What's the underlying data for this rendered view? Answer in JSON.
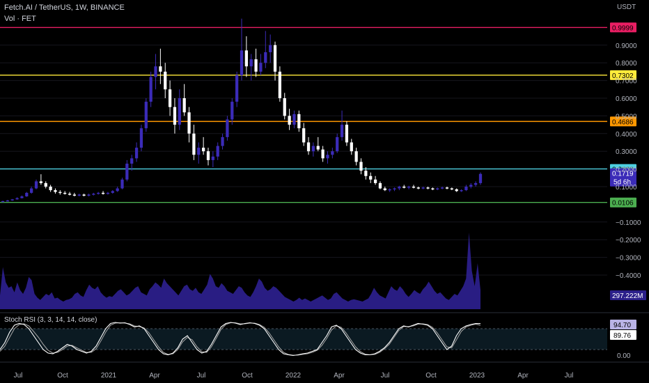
{
  "header": {
    "title": "Fetch.AI / TetherUS, 1W, BINANCE",
    "vol_label": "Vol · FET",
    "currency": "USDT"
  },
  "chart_data": {
    "type": "candlestick",
    "symbol": "Fetch.AI / TetherUS",
    "interval": "1W",
    "exchange": "BINANCE",
    "currency": "USDT",
    "y_ticks": [
      "0.9000",
      "0.8000",
      "0.7000",
      "0.6000",
      "0.5000",
      "0.4000",
      "0.3000",
      "0.2000",
      "0.1000",
      "−0.1000",
      "−0.2000",
      "−0.3000",
      "−0.4000"
    ],
    "y_tick_values": [
      0.9,
      0.8,
      0.7,
      0.6,
      0.5,
      0.4,
      0.3,
      0.2,
      0.1,
      -0.1,
      -0.2,
      -0.3,
      -0.4
    ],
    "x_ticks": [
      "Jul",
      "Oct",
      "2021",
      "Apr",
      "Jul",
      "Oct",
      "2022",
      "Apr",
      "Jul",
      "Oct",
      "2023",
      "Apr",
      "Jul"
    ],
    "levels": [
      {
        "label": "0.9999",
        "value": 0.9999,
        "color": "#e91e63"
      },
      {
        "label": "0.7302",
        "value": 0.7302,
        "color": "#ffeb3b"
      },
      {
        "label": "0.4686",
        "value": 0.4686,
        "color": "#ff9800"
      },
      {
        "label": "0.2000",
        "value": 0.2,
        "color": "#4dd0e1"
      },
      {
        "label": "0.0106",
        "value": 0.0106,
        "color": "#4caf50"
      }
    ],
    "last_price": {
      "label": "0.1719",
      "value": 0.1719,
      "countdown": "5d 6h",
      "color": "#3b2bb8"
    },
    "volume_label": "297.222M",
    "volume_profile": [
      0.18,
      0.55,
      0.35,
      0.28,
      0.3,
      0.22,
      0.35,
      0.25,
      0.2,
      0.28,
      0.42,
      0.38,
      0.2,
      0.15,
      0.12,
      0.16,
      0.2,
      0.18,
      0.22,
      0.14,
      0.15,
      0.12,
      0.1,
      0.12,
      0.13,
      0.15,
      0.2,
      0.22,
      0.18,
      0.16,
      0.25,
      0.32,
      0.28,
      0.26,
      0.3,
      0.22,
      0.18,
      0.15,
      0.17,
      0.16,
      0.2,
      0.24,
      0.26,
      0.22,
      0.18,
      0.2,
      0.24,
      0.28,
      0.3,
      0.22,
      0.2,
      0.18,
      0.26,
      0.3,
      0.35,
      0.32,
      0.28,
      0.4,
      0.34,
      0.3,
      0.26,
      0.22,
      0.18,
      0.24,
      0.3,
      0.32,
      0.26,
      0.24,
      0.28,
      0.22,
      0.2,
      0.26,
      0.32,
      0.46,
      0.4,
      0.3,
      0.28,
      0.34,
      0.3,
      0.24,
      0.22,
      0.2,
      0.25,
      0.3,
      0.28,
      0.22,
      0.18,
      0.16,
      0.22,
      0.3,
      0.4,
      0.36,
      0.28,
      0.24,
      0.26,
      0.3,
      0.28,
      0.24,
      0.2,
      0.16,
      0.14,
      0.12,
      0.1,
      0.12,
      0.15,
      0.12,
      0.14,
      0.12,
      0.1,
      0.12,
      0.14,
      0.16,
      0.18,
      0.15,
      0.12,
      0.14,
      0.2,
      0.22,
      0.18,
      0.14,
      0.12,
      0.1,
      0.12,
      0.13,
      0.12,
      0.11,
      0.1,
      0.12,
      0.14,
      0.2,
      0.28,
      0.22,
      0.18,
      0.16,
      0.14,
      0.22,
      0.3,
      0.26,
      0.24,
      0.3,
      0.26,
      0.2,
      0.16,
      0.2,
      0.25,
      0.22,
      0.2,
      0.26,
      0.3,
      0.36,
      0.3,
      0.24,
      0.2,
      0.22,
      0.18,
      0.14,
      0.12,
      0.16,
      0.2,
      0.18,
      0.24,
      0.3,
      0.4,
      1.0,
      0.5,
      0.3,
      0.6,
      0.25
    ],
    "candles": [
      [
        0.015,
        0.02,
        0.012,
        0.018
      ],
      [
        0.018,
        0.025,
        0.016,
        0.022
      ],
      [
        0.022,
        0.03,
        0.02,
        0.028
      ],
      [
        0.028,
        0.04,
        0.026,
        0.035
      ],
      [
        0.035,
        0.05,
        0.033,
        0.045
      ],
      [
        0.045,
        0.07,
        0.042,
        0.065
      ],
      [
        0.065,
        0.1,
        0.06,
        0.09
      ],
      [
        0.09,
        0.14,
        0.085,
        0.13
      ],
      [
        0.13,
        0.17,
        0.11,
        0.12
      ],
      [
        0.12,
        0.13,
        0.09,
        0.1
      ],
      [
        0.1,
        0.11,
        0.07,
        0.08
      ],
      [
        0.08,
        0.09,
        0.06,
        0.07
      ],
      [
        0.07,
        0.08,
        0.055,
        0.065
      ],
      [
        0.065,
        0.075,
        0.055,
        0.06
      ],
      [
        0.06,
        0.07,
        0.05,
        0.055
      ],
      [
        0.055,
        0.065,
        0.045,
        0.05
      ],
      [
        0.05,
        0.06,
        0.045,
        0.055
      ],
      [
        0.055,
        0.06,
        0.045,
        0.05
      ],
      [
        0.05,
        0.06,
        0.045,
        0.055
      ],
      [
        0.055,
        0.065,
        0.05,
        0.06
      ],
      [
        0.06,
        0.07,
        0.055,
        0.065
      ],
      [
        0.065,
        0.075,
        0.055,
        0.06
      ],
      [
        0.06,
        0.07,
        0.055,
        0.065
      ],
      [
        0.065,
        0.08,
        0.06,
        0.075
      ],
      [
        0.075,
        0.1,
        0.07,
        0.09
      ],
      [
        0.09,
        0.15,
        0.085,
        0.14
      ],
      [
        0.14,
        0.25,
        0.13,
        0.23
      ],
      [
        0.23,
        0.28,
        0.19,
        0.26
      ],
      [
        0.26,
        0.35,
        0.24,
        0.32
      ],
      [
        0.32,
        0.45,
        0.3,
        0.43
      ],
      [
        0.43,
        0.6,
        0.41,
        0.58
      ],
      [
        0.58,
        0.75,
        0.55,
        0.72
      ],
      [
        0.72,
        0.85,
        0.65,
        0.78
      ],
      [
        0.78,
        0.88,
        0.68,
        0.75
      ],
      [
        0.75,
        0.8,
        0.6,
        0.65
      ],
      [
        0.65,
        0.7,
        0.5,
        0.55
      ],
      [
        0.55,
        0.6,
        0.4,
        0.45
      ],
      [
        0.45,
        0.65,
        0.42,
        0.6
      ],
      [
        0.6,
        0.68,
        0.5,
        0.52
      ],
      [
        0.52,
        0.55,
        0.35,
        0.4
      ],
      [
        0.4,
        0.45,
        0.25,
        0.28
      ],
      [
        0.28,
        0.35,
        0.23,
        0.32
      ],
      [
        0.32,
        0.38,
        0.28,
        0.3
      ],
      [
        0.3,
        0.32,
        0.22,
        0.25
      ],
      [
        0.25,
        0.3,
        0.21,
        0.27
      ],
      [
        0.27,
        0.35,
        0.25,
        0.33
      ],
      [
        0.33,
        0.4,
        0.31,
        0.38
      ],
      [
        0.38,
        0.5,
        0.36,
        0.48
      ],
      [
        0.48,
        0.6,
        0.45,
        0.58
      ],
      [
        0.58,
        0.75,
        0.55,
        0.73
      ],
      [
        0.73,
        1.05,
        0.7,
        0.87
      ],
      [
        0.87,
        0.95,
        0.72,
        0.78
      ],
      [
        0.78,
        0.85,
        0.7,
        0.82
      ],
      [
        0.82,
        0.88,
        0.72,
        0.75
      ],
      [
        0.75,
        0.85,
        0.73,
        0.8
      ],
      [
        0.8,
        0.98,
        0.77,
        0.86
      ],
      [
        0.86,
        0.96,
        0.8,
        0.9
      ],
      [
        0.9,
        0.92,
        0.7,
        0.75
      ],
      [
        0.75,
        0.78,
        0.58,
        0.6
      ],
      [
        0.6,
        0.63,
        0.48,
        0.5
      ],
      [
        0.5,
        0.54,
        0.42,
        0.45
      ],
      [
        0.45,
        0.53,
        0.43,
        0.51
      ],
      [
        0.51,
        0.53,
        0.41,
        0.43
      ],
      [
        0.43,
        0.46,
        0.33,
        0.35
      ],
      [
        0.35,
        0.38,
        0.28,
        0.3
      ],
      [
        0.3,
        0.35,
        0.27,
        0.33
      ],
      [
        0.33,
        0.38,
        0.3,
        0.31
      ],
      [
        0.31,
        0.33,
        0.24,
        0.26
      ],
      [
        0.26,
        0.3,
        0.23,
        0.28
      ],
      [
        0.28,
        0.32,
        0.26,
        0.3
      ],
      [
        0.3,
        0.4,
        0.29,
        0.38
      ],
      [
        0.38,
        0.53,
        0.36,
        0.45
      ],
      [
        0.45,
        0.47,
        0.33,
        0.35
      ],
      [
        0.35,
        0.37,
        0.28,
        0.3
      ],
      [
        0.3,
        0.32,
        0.22,
        0.24
      ],
      [
        0.24,
        0.26,
        0.17,
        0.19
      ],
      [
        0.19,
        0.21,
        0.14,
        0.16
      ],
      [
        0.16,
        0.18,
        0.12,
        0.14
      ],
      [
        0.14,
        0.16,
        0.11,
        0.12
      ],
      [
        0.12,
        0.13,
        0.085,
        0.09
      ],
      [
        0.09,
        0.1,
        0.075,
        0.08
      ],
      [
        0.08,
        0.09,
        0.07,
        0.085
      ],
      [
        0.085,
        0.095,
        0.075,
        0.09
      ],
      [
        0.09,
        0.105,
        0.08,
        0.1
      ],
      [
        0.1,
        0.11,
        0.09,
        0.095
      ],
      [
        0.095,
        0.105,
        0.085,
        0.1
      ],
      [
        0.1,
        0.11,
        0.09,
        0.095
      ],
      [
        0.095,
        0.1,
        0.085,
        0.09
      ],
      [
        0.09,
        0.1,
        0.085,
        0.095
      ],
      [
        0.095,
        0.1,
        0.085,
        0.09
      ],
      [
        0.09,
        0.095,
        0.08,
        0.085
      ],
      [
        0.085,
        0.095,
        0.08,
        0.09
      ],
      [
        0.09,
        0.1,
        0.085,
        0.095
      ],
      [
        0.095,
        0.1,
        0.085,
        0.09
      ],
      [
        0.09,
        0.095,
        0.08,
        0.085
      ],
      [
        0.085,
        0.09,
        0.07,
        0.075
      ],
      [
        0.075,
        0.085,
        0.07,
        0.08
      ],
      [
        0.08,
        0.11,
        0.075,
        0.1
      ],
      [
        0.1,
        0.12,
        0.09,
        0.11
      ],
      [
        0.11,
        0.13,
        0.1,
        0.12
      ],
      [
        0.12,
        0.18,
        0.11,
        0.1719
      ]
    ],
    "volume_bars": [
      0.15,
      0.18,
      0.12,
      0.35,
      0.28,
      0.4,
      0.3,
      0.22,
      0.25,
      0.3,
      0.18,
      0.2,
      0.16,
      0.14,
      0.12,
      0.1,
      0.12,
      0.15,
      0.13,
      0.12,
      0.14,
      0.12,
      0.13,
      0.15,
      0.18,
      0.2,
      0.3,
      0.35,
      0.32,
      0.28,
      0.35,
      0.38,
      0.4,
      0.35,
      0.3,
      0.32,
      0.28,
      0.3,
      0.26,
      0.24,
      0.28,
      0.26,
      0.22,
      0.2,
      0.24,
      0.26,
      0.3,
      0.34,
      0.38,
      0.42,
      0.48,
      0.36,
      0.3,
      0.34,
      0.3,
      0.38,
      0.36,
      0.34,
      0.3,
      0.28,
      0.26,
      0.24,
      0.22,
      0.2,
      0.24,
      0.22,
      0.2,
      0.22,
      0.2,
      0.24,
      0.22,
      0.3,
      0.26,
      0.22,
      0.2,
      0.18,
      0.2,
      0.16,
      0.14,
      0.18,
      0.12,
      0.14,
      0.16,
      0.14,
      0.18,
      0.16,
      0.14,
      0.15,
      0.16,
      0.14,
      0.15,
      0.16,
      0.18,
      0.16,
      0.15,
      0.2,
      0.3,
      1.0,
      0.5,
      0.62,
      0.35
    ],
    "stoch_rsi": {
      "label": "Stoch RSI (3, 3, 14, 14, close)",
      "k_value": "94.70",
      "d_value": "89.76",
      "tick_zero": "0.00",
      "upper_band": 80,
      "lower_band": 20,
      "k": [
        20,
        40,
        70,
        90,
        95,
        92,
        80,
        60,
        40,
        20,
        10,
        8,
        15,
        25,
        35,
        30,
        20,
        15,
        10,
        15,
        30,
        55,
        80,
        95,
        98,
        96,
        97,
        92,
        85,
        88,
        80,
        60,
        40,
        20,
        8,
        5,
        10,
        25,
        50,
        60,
        40,
        20,
        10,
        15,
        35,
        60,
        85,
        95,
        98,
        96,
        92,
        95,
        97,
        95,
        90,
        80,
        60,
        40,
        20,
        8,
        5,
        3,
        5,
        8,
        10,
        15,
        20,
        40,
        60,
        85,
        90,
        80,
        60,
        40,
        20,
        10,
        5,
        5,
        8,
        15,
        25,
        40,
        60,
        80,
        88,
        85,
        90,
        95,
        93,
        90,
        80,
        60,
        40,
        20,
        30,
        60,
        80,
        88,
        92,
        95,
        94.7
      ],
      "d": [
        15,
        30,
        55,
        80,
        92,
        94,
        88,
        72,
        55,
        35,
        18,
        10,
        12,
        20,
        30,
        32,
        25,
        18,
        12,
        12,
        22,
        45,
        70,
        90,
        96,
        97,
        96,
        94,
        88,
        86,
        82,
        68,
        48,
        28,
        12,
        6,
        8,
        20,
        42,
        55,
        48,
        28,
        14,
        12,
        28,
        52,
        78,
        92,
        97,
        97,
        94,
        94,
        96,
        96,
        92,
        84,
        68,
        48,
        28,
        12,
        6,
        4,
        4,
        6,
        8,
        12,
        18,
        32,
        52,
        76,
        88,
        84,
        68,
        48,
        28,
        14,
        7,
        5,
        6,
        12,
        22,
        35,
        55,
        75,
        86,
        86,
        88,
        93,
        94,
        92,
        84,
        68,
        48,
        28,
        25,
        48,
        72,
        85,
        90,
        93,
        89.76
      ]
    }
  }
}
